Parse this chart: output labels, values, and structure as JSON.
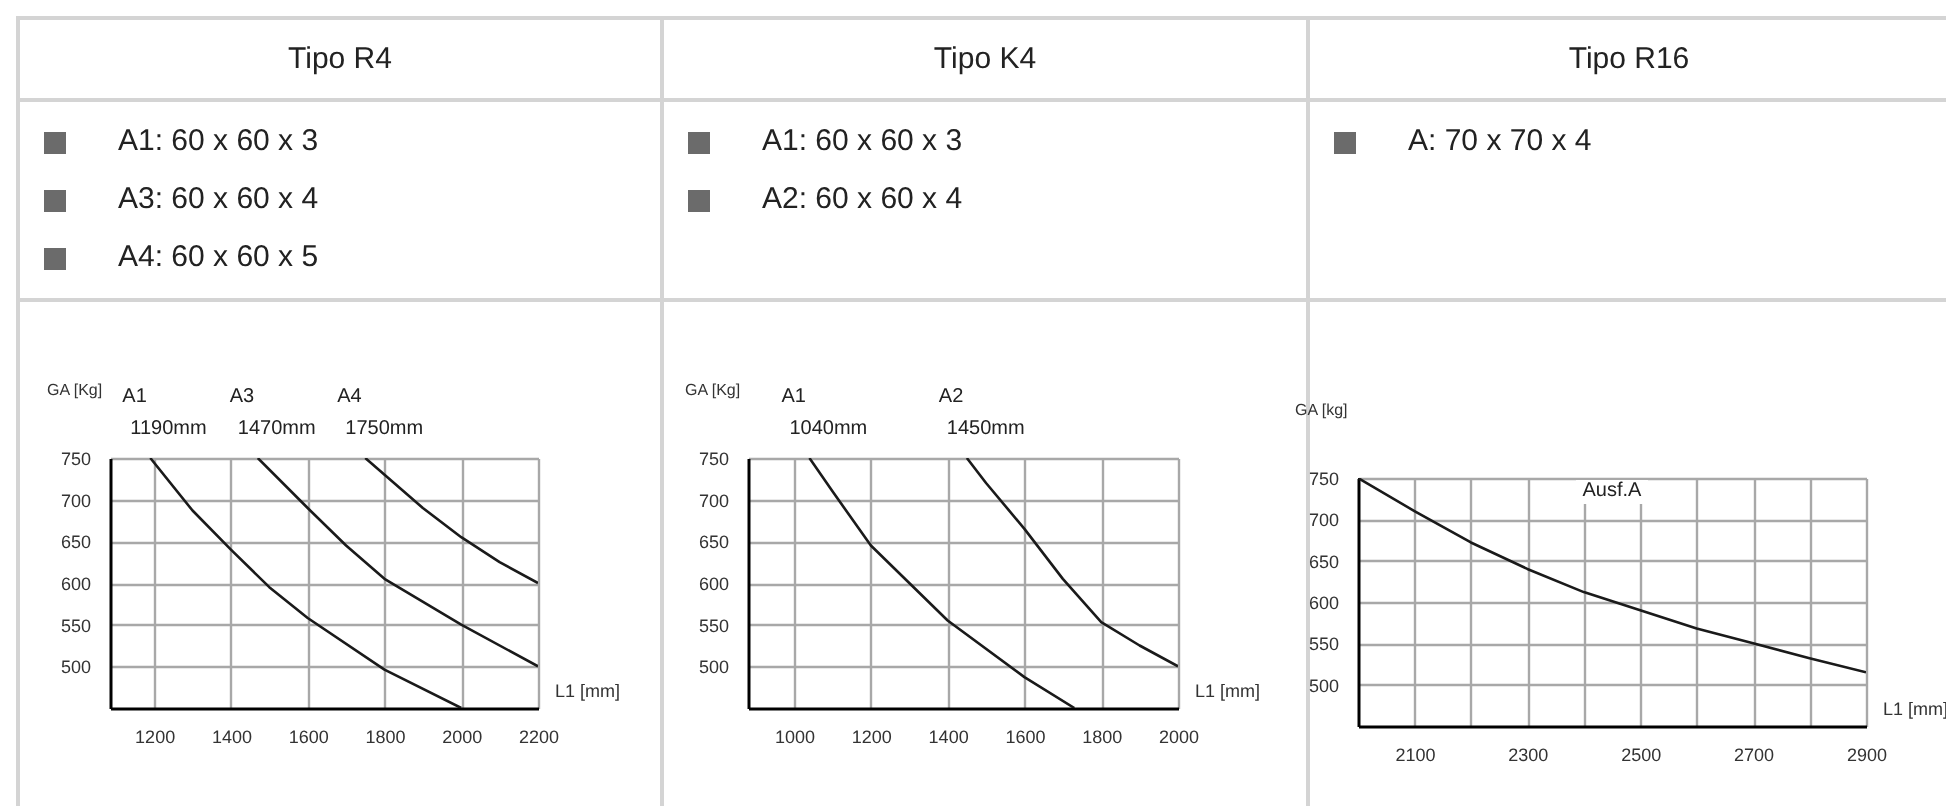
{
  "chart_data": [
    {
      "type": "line",
      "title": "Tipo R4",
      "xlabel": "L1 [mm]",
      "ylabel": "GA [Kg]",
      "annotations": [
        "A1: 60 x 60 x 3",
        "A3: 60 x 60 x 4",
        "A4: 60 x 60 x 5",
        {
          "text": "1190mm",
          "x": 1190,
          "y": 750
        },
        {
          "text": "1470mm",
          "x": 1470,
          "y": 750
        },
        {
          "text": "1750mm",
          "x": 1750,
          "y": 750
        }
      ],
      "series": [
        {
          "name": "A1",
          "color": "#1a1a1a",
          "x": [
            1190,
            1300,
            1400,
            1500,
            1600,
            1800,
            2000
          ],
          "values": [
            750,
            687,
            640,
            595,
            558,
            496,
            450
          ]
        },
        {
          "name": "A3",
          "color": "#1a1a1a",
          "x": [
            1470,
            1600,
            1700,
            1800,
            2000,
            2200
          ],
          "values": [
            750,
            690,
            645,
            605,
            550,
            500
          ]
        },
        {
          "name": "A4",
          "color": "#1a1a1a",
          "x": [
            1750,
            1900,
            2000,
            2100,
            2200
          ],
          "values": [
            750,
            690,
            655,
            625,
            600
          ]
        }
      ],
      "xlim": [
        1085,
        2200
      ],
      "ylim": [
        450,
        750
      ],
      "xticks": [
        1200,
        1400,
        1600,
        1800,
        2000,
        2200
      ],
      "yticks": [
        500,
        550,
        600,
        650,
        700,
        750
      ],
      "grid": true
    },
    {
      "type": "line",
      "title": "Tipo K4",
      "xlabel": "L1 [mm]",
      "ylabel": "GA [Kg]",
      "annotations": [
        "A1: 60 x 60 x 3",
        "A2: 60 x 60 x 4",
        {
          "text": "1040mm",
          "x": 1040,
          "y": 750
        },
        {
          "text": "1450mm",
          "x": 1450,
          "y": 750
        }
      ],
      "series": [
        {
          "name": "A1",
          "color": "#1a1a1a",
          "x": [
            1040,
            1100,
            1200,
            1300,
            1400,
            1600,
            1730
          ],
          "values": [
            750,
            710,
            645,
            600,
            555,
            487,
            450
          ]
        },
        {
          "name": "A2",
          "color": "#1a1a1a",
          "x": [
            1450,
            1500,
            1600,
            1700,
            1800,
            1900,
            2000
          ],
          "values": [
            750,
            720,
            665,
            605,
            553,
            525,
            500
          ]
        }
      ],
      "xlim": [
        880,
        2000
      ],
      "ylim": [
        450,
        750
      ],
      "xticks": [
        1000,
        1200,
        1400,
        1600,
        1800,
        2000
      ],
      "yticks": [
        500,
        550,
        600,
        650,
        700,
        750
      ],
      "grid": true
    },
    {
      "type": "line",
      "title": "Tipo R16",
      "xlabel": "L1 [mm]",
      "ylabel": "GA [kg]",
      "subtitle": "Ausf.A",
      "annotations": [
        "A: 70 x 70 x 4"
      ],
      "series": [
        {
          "color": "#1a1a1a",
          "x": [
            2000,
            2100,
            2200,
            2300,
            2400,
            2500,
            2600,
            2700,
            2800,
            2900
          ],
          "values": [
            750,
            710,
            672,
            640,
            612,
            590,
            568,
            550,
            532,
            515
          ]
        }
      ],
      "xlim": [
        2000,
        2900
      ],
      "ylim": [
        450,
        750
      ],
      "xticks": [
        2100,
        {
          "value": 2200,
          "label": null
        },
        2300,
        {
          "value": 2400,
          "label": null
        },
        2500,
        {
          "value": 2600,
          "label": null
        },
        2700,
        {
          "value": 2800,
          "label": null
        },
        2900
      ],
      "yticks": [
        500,
        550,
        600,
        650,
        700,
        750
      ],
      "grid": true
    }
  ]
}
